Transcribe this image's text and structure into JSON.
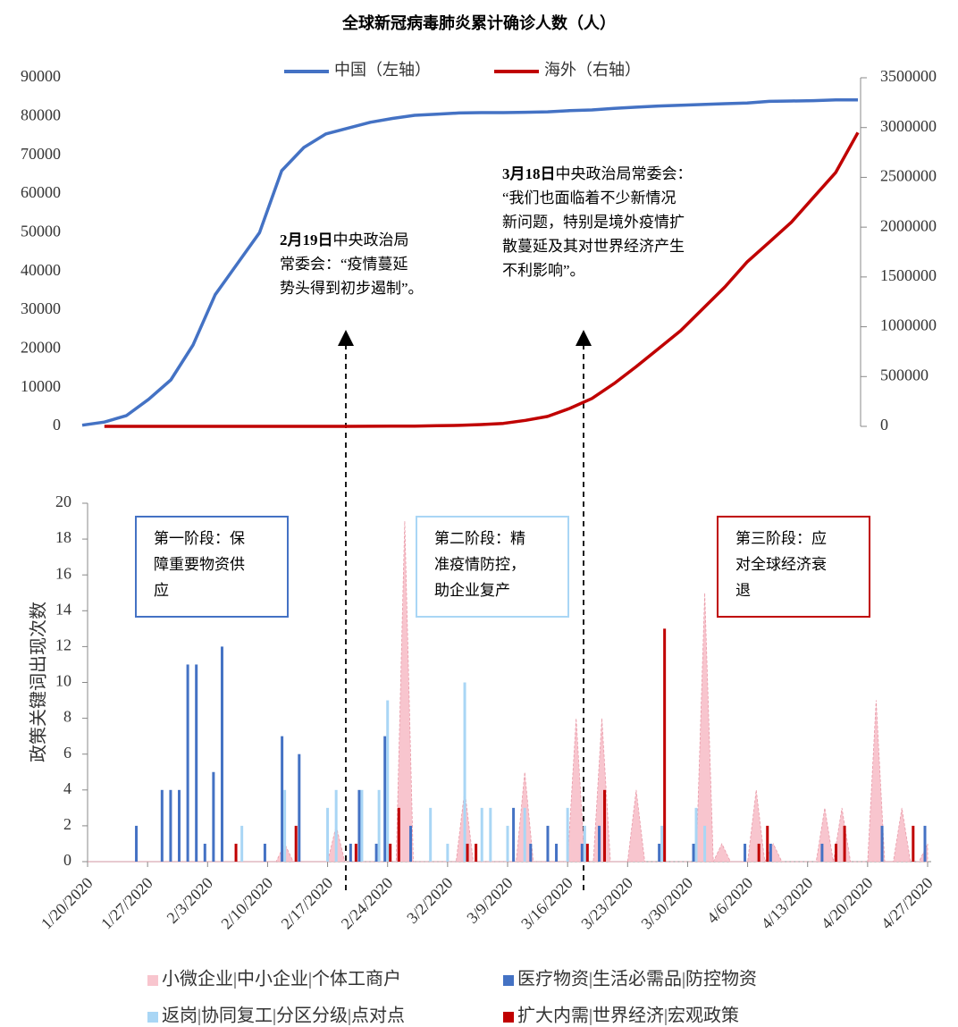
{
  "chart_data": [
    {
      "type": "line",
      "title": "全球新冠病毒肺炎累计确诊人数（人）",
      "categories": [
        null,
        null,
        null,
        null,
        null,
        null,
        null,
        null,
        null,
        null,
        null,
        null,
        null,
        null,
        null,
        null,
        null,
        null,
        null,
        null,
        null,
        null,
        null,
        null,
        null,
        null,
        null,
        null,
        null,
        null,
        null,
        null,
        null,
        null,
        null,
        null
      ],
      "series": [
        {
          "name": "中国（左轴）",
          "color": "#4472c4",
          "axis": "y",
          "values": [
            300,
            1100,
            2800,
            7000,
            12000,
            21000,
            34000,
            42000,
            50000,
            66000,
            72000,
            75500,
            77000,
            78500,
            79500,
            80300,
            80600,
            80900,
            81000,
            81000,
            81100,
            81200,
            81500,
            81700,
            82100,
            82400,
            82700,
            82900,
            83100,
            83300,
            83500,
            83900,
            84000,
            84100,
            84300,
            84300
          ]
        },
        {
          "name": "海外（右轴）",
          "color": "#c00000",
          "axis": "y2",
          "values": [
            null,
            0,
            0,
            0,
            0,
            0,
            0,
            0,
            0,
            0,
            0,
            0,
            0,
            1000,
            2000,
            3000,
            6000,
            10000,
            18000,
            30000,
            60000,
            100000,
            180000,
            280000,
            430000,
            600000,
            780000,
            960000,
            1180000,
            1400000,
            1650000,
            1850000,
            2050000,
            2300000,
            2550000,
            2950000
          ]
        }
      ],
      "ylim": [
        0,
        90000
      ],
      "yticks": [
        0,
        10000,
        20000,
        30000,
        40000,
        50000,
        60000,
        70000,
        80000,
        90000
      ],
      "y2lim": [
        0,
        3500000
      ],
      "y2ticks": [
        0,
        500000,
        1000000,
        1500000,
        2000000,
        2500000,
        3000000,
        3500000
      ],
      "annotations": [
        {
          "date": "2月19日",
          "lines": [
            "中央政治局",
            "常委会：“疫情蔓延",
            "势头得到初步遏制”。"
          ]
        },
        {
          "date": "3月18日",
          "lines": [
            "中央政治局常委会：",
            "“我们也面临着不少新情况",
            "新问题，特别是境外疫情扩",
            "散蔓延及其对世界经济产生",
            "不利影响”。"
          ]
        }
      ]
    },
    {
      "type": "bar",
      "ylabel": "政策关键词出现次数",
      "categories": [
        "1/20/2020",
        null,
        null,
        null,
        null,
        null,
        null,
        "1/27/2020",
        null,
        null,
        null,
        null,
        null,
        null,
        "2/3/2020",
        null,
        null,
        null,
        null,
        null,
        null,
        "2/10/2020",
        null,
        null,
        null,
        null,
        null,
        null,
        "2/17/2020",
        null,
        null,
        null,
        null,
        null,
        null,
        "2/24/2020",
        null,
        null,
        null,
        null,
        null,
        null,
        "3/2/2020",
        null,
        null,
        null,
        null,
        null,
        null,
        "3/9/2020",
        null,
        null,
        null,
        null,
        null,
        null,
        "3/16/2020",
        null,
        null,
        null,
        null,
        null,
        null,
        "3/23/2020",
        null,
        null,
        null,
        null,
        null,
        null,
        "3/30/2020",
        null,
        null,
        null,
        null,
        null,
        null,
        "4/6/2020",
        null,
        null,
        null,
        null,
        null,
        null,
        "4/13/2020",
        null,
        null,
        null,
        null,
        null,
        null,
        "4/20/2020",
        null,
        null,
        null,
        null,
        null,
        null,
        "4/27/2020"
      ],
      "series": [
        {
          "name": "小微企业|中小企业|个体工商户",
          "type": "area",
          "color": "#f8c5ce",
          "values": [
            0,
            0,
            0,
            0,
            0,
            0,
            0,
            0,
            0,
            0,
            0,
            0,
            0,
            0,
            0,
            0,
            0,
            0,
            0,
            0,
            0,
            0,
            0,
            1,
            0,
            0,
            0,
            0,
            0,
            2,
            0,
            0,
            0,
            0,
            0,
            0,
            0,
            19,
            0,
            0,
            0,
            0,
            0,
            0,
            4,
            0,
            0,
            0,
            0,
            0,
            0,
            5,
            0,
            0,
            0,
            0,
            0,
            8,
            0,
            0,
            8,
            0,
            0,
            0,
            4,
            0,
            0,
            0,
            0,
            0,
            0,
            0,
            15,
            0,
            1,
            0,
            0,
            0,
            4,
            0,
            1,
            0,
            0,
            0,
            0,
            0,
            3,
            0,
            3,
            0,
            0,
            0,
            9,
            0,
            0,
            3,
            0,
            0,
            1
          ]
        },
        {
          "name": "医疗物资|生活必需品|防控物资",
          "type": "bar",
          "color": "#4472c4",
          "values": [
            0,
            0,
            0,
            0,
            0,
            0,
            2,
            0,
            0,
            4,
            4,
            4,
            11,
            11,
            1,
            5,
            12,
            0,
            0,
            0,
            0,
            1,
            0,
            7,
            0,
            6,
            0,
            0,
            0,
            0,
            0,
            1,
            4,
            0,
            1,
            7,
            0,
            0,
            2,
            0,
            0,
            0,
            0,
            0,
            0,
            0,
            0,
            0,
            0,
            0,
            3,
            0,
            1,
            0,
            2,
            1,
            0,
            0,
            1,
            0,
            2,
            0,
            0,
            0,
            0,
            0,
            0,
            1,
            0,
            0,
            0,
            1,
            0,
            0,
            0,
            0,
            0,
            1,
            0,
            0,
            1,
            0,
            0,
            0,
            0,
            0,
            1,
            0,
            0,
            0,
            0,
            0,
            0,
            2,
            0,
            0,
            0,
            0,
            2
          ]
        },
        {
          "name": "返岗|协同复工|分区分级|点对点",
          "type": "bar",
          "color": "#a9d6f5",
          "values": [
            0,
            0,
            0,
            0,
            0,
            0,
            0,
            0,
            0,
            0,
            0,
            0,
            0,
            0,
            0,
            0,
            0,
            0,
            2,
            0,
            0,
            0,
            0,
            4,
            0,
            0,
            0,
            0,
            3,
            4,
            0,
            0,
            4,
            0,
            4,
            9,
            0,
            0,
            0,
            0,
            3,
            0,
            1,
            0,
            10,
            0,
            3,
            3,
            0,
            2,
            0,
            3,
            0,
            0,
            0,
            0,
            3,
            0,
            2,
            0,
            0,
            0,
            0,
            0,
            0,
            0,
            0,
            2,
            0,
            0,
            0,
            3,
            2,
            0,
            0,
            0,
            0,
            0,
            0,
            0,
            0,
            0,
            0,
            0,
            0,
            0,
            0,
            0,
            0,
            0,
            0,
            0,
            0,
            0,
            0,
            0,
            0,
            0,
            0
          ]
        },
        {
          "name": "扩大内需|世界经济|宏观政策",
          "type": "bar",
          "color": "#c00000",
          "values": [
            0,
            0,
            0,
            0,
            0,
            0,
            0,
            0,
            0,
            0,
            0,
            0,
            0,
            0,
            0,
            0,
            0,
            1,
            0,
            0,
            0,
            0,
            0,
            0,
            2,
            0,
            0,
            0,
            0,
            0,
            0,
            1,
            0,
            0,
            0,
            1,
            3,
            0,
            0,
            0,
            0,
            0,
            0,
            0,
            1,
            1,
            0,
            0,
            0,
            0,
            0,
            0,
            0,
            0,
            0,
            0,
            0,
            0,
            1,
            0,
            4,
            0,
            0,
            0,
            0,
            0,
            0,
            13,
            0,
            0,
            0,
            0,
            0,
            0,
            0,
            0,
            0,
            0,
            1,
            2,
            0,
            0,
            0,
            0,
            0,
            0,
            0,
            1,
            2,
            0,
            0,
            0,
            0,
            0,
            0,
            0,
            2,
            0,
            0
          ]
        }
      ],
      "ylim": [
        0,
        20
      ],
      "yticks": [
        0,
        2,
        4,
        6,
        8,
        10,
        12,
        14,
        16,
        18,
        20
      ],
      "annotations": [
        {
          "color": "#4472c4",
          "lines": [
            "第一阶段：保",
            "障重要物资供",
            "应"
          ]
        },
        {
          "color": "#a9d6f5",
          "lines": [
            "第二阶段：精",
            "准疫情防控，",
            "助企业复产"
          ]
        },
        {
          "color": "#c00000",
          "lines": [
            "第三阶段：应",
            "对全球经济衰",
            "退"
          ]
        }
      ]
    }
  ]
}
